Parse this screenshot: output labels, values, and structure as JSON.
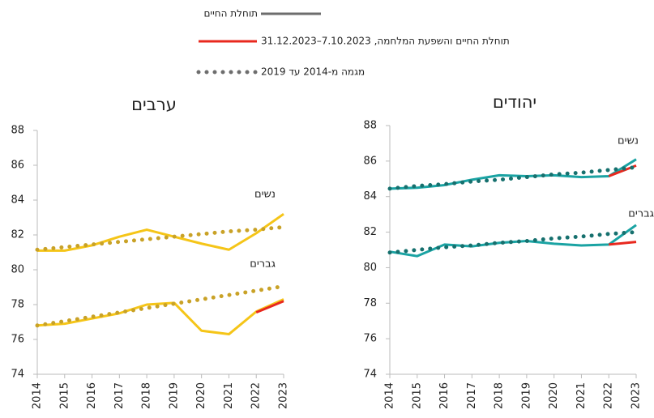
{
  "legend": [
    {
      "label": "תוחלת החיים",
      "color": "#6d6d6d",
      "style": "solid"
    },
    {
      "label": "תוחלת החיים והשפעת המלחמה, 7.10.2023–31.12.2023",
      "color": "#e8281e",
      "style": "solid"
    },
    {
      "label": "מגמה מ-2014 עד 2019",
      "color": "#6d6d6d",
      "style": "dotted"
    }
  ],
  "chart_data": [
    {
      "type": "line",
      "title": "ערבים",
      "categories": [
        "2014",
        "2015",
        "2016",
        "2017",
        "2018",
        "2019",
        "2020",
        "2021",
        "2022",
        "2023"
      ],
      "ylim": [
        74,
        88
      ],
      "yticks": [
        74,
        76,
        78,
        80,
        82,
        84,
        86,
        88
      ],
      "series": [
        {
          "name": "נשים",
          "color": "#f5c518",
          "style": "solid",
          "values": [
            81.1,
            81.1,
            81.4,
            81.9,
            82.3,
            81.9,
            81.5,
            81.15,
            82.1,
            83.2
          ]
        },
        {
          "name": "גברים",
          "color": "#f5c518",
          "style": "solid",
          "values": [
            76.8,
            76.9,
            77.2,
            77.5,
            78.0,
            78.1,
            76.5,
            76.3,
            77.6,
            78.3
          ]
        },
        {
          "color": "#e8281e",
          "style": "solid",
          "values": [
            null,
            null,
            null,
            null,
            null,
            null,
            null,
            null,
            77.55,
            78.2
          ]
        },
        {
          "color": "#c9a227",
          "style": "dotted",
          "values": [
            81.15,
            81.3,
            81.45,
            81.6,
            81.75,
            81.9,
            82.05,
            82.2,
            82.3,
            82.45
          ]
        },
        {
          "color": "#c9a227",
          "style": "dotted",
          "values": [
            76.8,
            77.05,
            77.3,
            77.55,
            77.8,
            78.05,
            78.3,
            78.55,
            78.8,
            79.05
          ]
        }
      ]
    },
    {
      "type": "line",
      "title": "יהודים",
      "categories": [
        "2014",
        "2015",
        "2016",
        "2017",
        "2018",
        "2019",
        "2020",
        "2021",
        "2022",
        "2023"
      ],
      "ylim": [
        74,
        88
      ],
      "yticks": [
        74,
        76,
        78,
        80,
        82,
        84,
        86,
        88
      ],
      "series": [
        {
          "name": "נשים",
          "color": "#1aa3a3",
          "style": "solid",
          "values": [
            84.45,
            84.5,
            84.65,
            84.95,
            85.2,
            85.15,
            85.2,
            85.1,
            85.15,
            86.1
          ]
        },
        {
          "name": "גברים",
          "color": "#1aa3a3",
          "style": "solid",
          "values": [
            80.9,
            80.65,
            81.3,
            81.2,
            81.4,
            81.5,
            81.35,
            81.25,
            81.3,
            82.4
          ]
        },
        {
          "color": "#e8281e",
          "style": "solid",
          "values": [
            null,
            null,
            null,
            null,
            null,
            null,
            null,
            null,
            85.15,
            85.75
          ]
        },
        {
          "color": "#e8281e",
          "style": "solid",
          "values": [
            null,
            null,
            null,
            null,
            null,
            null,
            null,
            null,
            81.3,
            81.45
          ]
        },
        {
          "color": "#16706e",
          "style": "dotted",
          "values": [
            84.45,
            84.6,
            84.7,
            84.85,
            84.95,
            85.1,
            85.25,
            85.35,
            85.5,
            85.65
          ]
        },
        {
          "color": "#16706e",
          "style": "dotted",
          "values": [
            80.85,
            81.0,
            81.15,
            81.25,
            81.4,
            81.5,
            81.65,
            81.75,
            81.9,
            82.0
          ]
        }
      ]
    }
  ]
}
